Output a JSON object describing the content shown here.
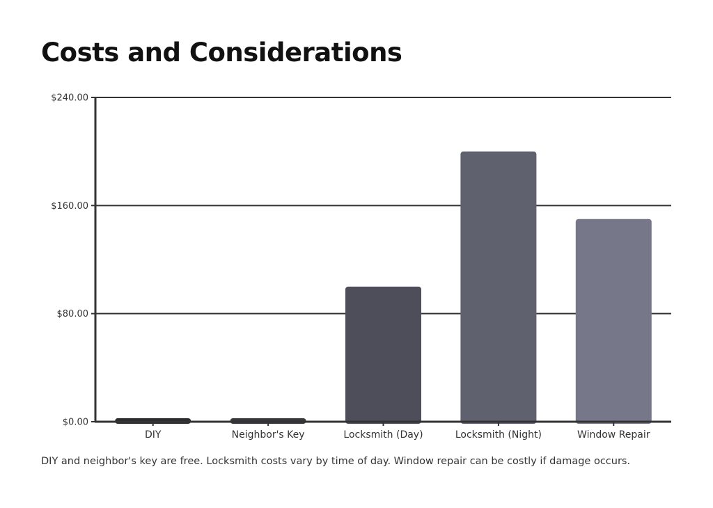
{
  "chart_data": {
    "type": "bar",
    "title": "Costs and Considerations",
    "categories": [
      "DIY",
      "Neighbor's Key",
      "Locksmith (Day)",
      "Locksmith (Night)",
      "Window Repair"
    ],
    "values": [
      0,
      0,
      100,
      200,
      150
    ],
    "bar_colors": [
      "#2b2b30",
      "#38383e",
      "#4e4e5a",
      "#60616e",
      "#767789"
    ],
    "ylim": [
      0,
      240
    ],
    "yticks": [
      0,
      80,
      160,
      240
    ],
    "ytick_labels": [
      "$0.00",
      "$80.00",
      "$160.00",
      "$240.00"
    ],
    "xlabel": "",
    "ylabel": "",
    "grid": true
  },
  "caption": "DIY and neighbor's key are free. Locksmith costs vary by time of day. Window repair can be costly if damage occurs."
}
